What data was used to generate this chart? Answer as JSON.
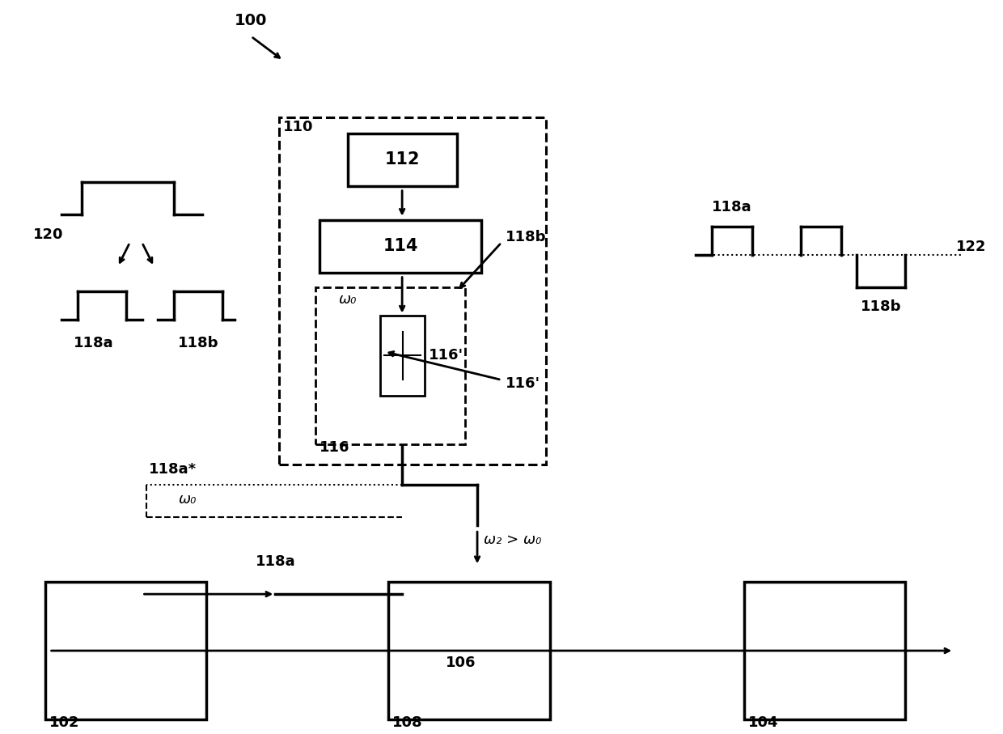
{
  "bg_color": "#ffffff",
  "line_color": "#000000",
  "label_100": "100",
  "label_110": "110",
  "label_112": "112",
  "label_114": "114",
  "label_116": "116",
  "label_116prime": "116'",
  "label_118a": "118a",
  "label_118b": "118b",
  "label_118aprime": "118a*",
  "label_120": "120",
  "label_122": "122",
  "label_102": "102",
  "label_104": "104",
  "label_106": "106",
  "label_108": "108",
  "label_omega0": "ω₀",
  "label_omega2": "ω₂ > ω₀"
}
